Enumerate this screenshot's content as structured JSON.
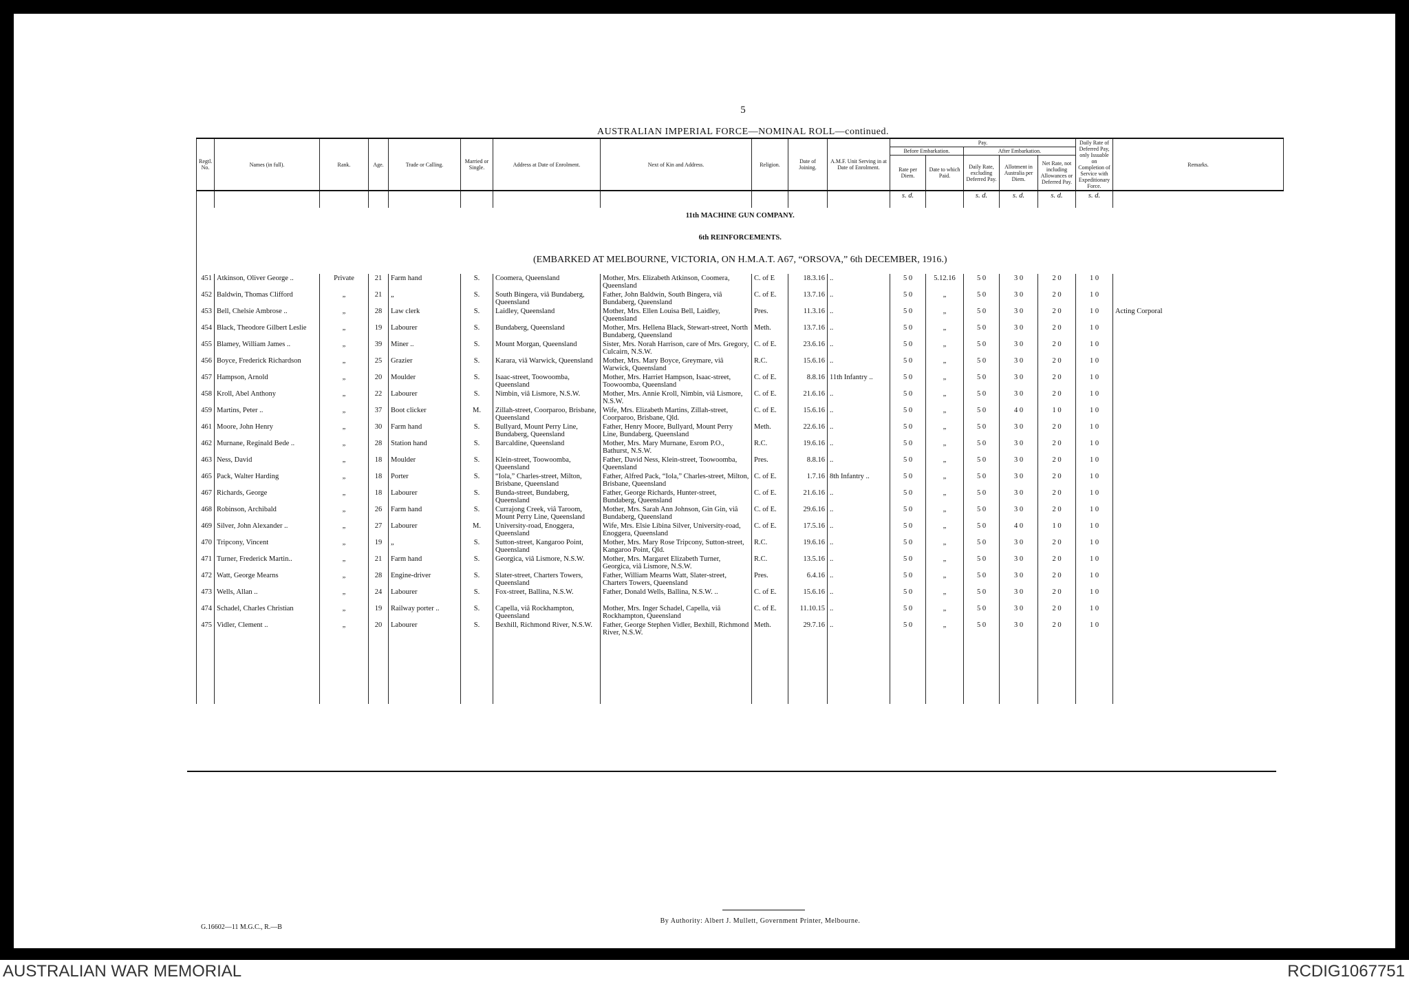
{
  "page_number": "5",
  "title": "AUSTRALIAN IMPERIAL FORCE—NOMINAL ROLL—continued.",
  "columns": {
    "no": "Regtl. No.",
    "name": "Names (in full).",
    "rank": "Rank.",
    "age": "Age.",
    "trade": "Trade or Calling.",
    "married": "Married or Single.",
    "address": "Address at Date of Enrolment.",
    "kin": "Next of Kin and Address.",
    "religion": "Religion.",
    "joined": "Date of Joining.",
    "unit": "A.M.F. Unit Serving in at Date of Enrolment.",
    "rate": "Rate per Diem.",
    "paid": "Date to which Paid.",
    "daily": "Daily Rate, excluding Deferred Pay.",
    "allot": "Allotment in Australia per Diem.",
    "net": "Net Rate, not including Allowances or Deferred Pay.",
    "deferred": "Daily Rate of Deferred Pay, only Issuable on Completion of Service with Expeditionary Force.",
    "remarks": "Remarks."
  },
  "pay": {
    "title": "Pay.",
    "before": "Before Embarkation.",
    "after": "After Embarkation."
  },
  "units": "s. d.",
  "headings": [
    "11th MACHINE GUN COMPANY.",
    "6th REINFORCEMENTS.",
    "(EMBARKED AT MELBOURNE, VICTORIA, ON H.M.A.T. A67, “ORSOVA,” 6th DECEMBER, 1916.)"
  ],
  "rows": [
    {
      "no": 451,
      "name": "Atkinson, Oliver George ..",
      "rank": "Private",
      "age": 21,
      "trade": "Farm hand",
      "married": "S.",
      "address": "Coomera, Queensland",
      "kin": "Mother, Mrs. Elizabeth Atkinson, Coomera, Queensland",
      "religion": "C. of E",
      "joined": "18.3.16",
      "unit": "..",
      "rate": "5 0",
      "paid": "5.12.16",
      "daily": "5 0",
      "allot": "3 0",
      "net": "2 0",
      "deferred": "1 0"
    },
    {
      "no": 452,
      "name": "Baldwin, Thomas Clifford",
      "rank": "„",
      "age": 21,
      "trade": "„",
      "married": "S.",
      "address": "South Bingera, viâ Bundaberg, Queensland",
      "kin": "Father, John Baldwin, South Bingera, viâ Bundaberg, Queensland",
      "religion": "C. of E.",
      "joined": "13.7.16",
      "unit": "..",
      "rate": "5 0",
      "paid": "„",
      "daily": "5 0",
      "allot": "3 0",
      "net": "2 0",
      "deferred": "1 0"
    },
    {
      "no": 453,
      "name": "Bell, Chelsie Ambrose ..",
      "rank": "„",
      "age": 28,
      "trade": "Law clerk",
      "married": "S.",
      "address": "Laidley, Queensland",
      "kin": "Mother, Mrs. Ellen Louisa Bell, Laidley, Queensland",
      "religion": "Pres.",
      "joined": "11.3.16",
      "unit": "..",
      "rate": "5 0",
      "paid": "„",
      "daily": "5 0",
      "allot": "3 0",
      "net": "2 0",
      "deferred": "1 0",
      "remarks": "Acting Corporal"
    },
    {
      "no": 454,
      "name": "Black, Theodore Gilbert Leslie",
      "rank": "„",
      "age": 19,
      "trade": "Labourer",
      "married": "S.",
      "address": "Bundaberg, Queensland",
      "kin": "Mother, Mrs. Hellena Black, Stewart-street, North Bundaberg, Queensland",
      "religion": "Meth.",
      "joined": "13.7.16",
      "unit": "..",
      "rate": "5 0",
      "paid": "„",
      "daily": "5 0",
      "allot": "3 0",
      "net": "2 0",
      "deferred": "1 0"
    },
    {
      "no": 455,
      "name": "Blamey, William James ..",
      "rank": "„",
      "age": 39,
      "trade": "Miner ..",
      "married": "S.",
      "address": "Mount Morgan, Queensland",
      "kin": "Sister, Mrs. Norah Harrison, care of Mrs. Gregory, Culcairn, N.S.W.",
      "religion": "C. of E.",
      "joined": "23.6.16",
      "unit": "..",
      "rate": "5 0",
      "paid": "„",
      "daily": "5 0",
      "allot": "3 0",
      "net": "2 0",
      "deferred": "1 0"
    },
    {
      "no": 456,
      "name": "Boyce, Frederick Richardson",
      "rank": "„",
      "age": 25,
      "trade": "Grazier",
      "married": "S.",
      "address": "Karara, viâ Warwick, Queensland",
      "kin": "Mother, Mrs. Mary Boyce, Greymare, viâ Warwick, Queensland",
      "religion": "R.C.",
      "joined": "15.6.16",
      "unit": "..",
      "rate": "5 0",
      "paid": "„",
      "daily": "5 0",
      "allot": "3 0",
      "net": "2 0",
      "deferred": "1 0"
    },
    {
      "no": 457,
      "name": "Hampson, Arnold",
      "rank": "„",
      "age": 20,
      "trade": "Moulder",
      "married": "S.",
      "address": "Isaac-street, Toowoomba, Queensland",
      "kin": "Mother, Mrs. Harriet Hampson, Isaac-street, Toowoomba, Queensland",
      "religion": "C. of E.",
      "joined": "8.8.16",
      "unit": "11th Infantry ..",
      "rate": "5 0",
      "paid": "„",
      "daily": "5 0",
      "allot": "3 0",
      "net": "2 0",
      "deferred": "1 0"
    },
    {
      "no": 458,
      "name": "Kroll, Abel Anthony",
      "rank": "„",
      "age": 22,
      "trade": "Labourer",
      "married": "S.",
      "address": "Nimbin, viâ Lismore, N.S.W.",
      "kin": "Mother, Mrs. Annie Kroll, Nimbin, viâ Lismore, N.S.W.",
      "religion": "C. of E.",
      "joined": "21.6.16",
      "unit": "..",
      "rate": "5 0",
      "paid": "„",
      "daily": "5 0",
      "allot": "3 0",
      "net": "2 0",
      "deferred": "1 0"
    },
    {
      "no": 459,
      "name": "Martins, Peter ..",
      "rank": "„",
      "age": 37,
      "trade": "Boot clicker",
      "married": "M.",
      "address": "Zillah-street, Coorparoo, Brisbane, Queensland",
      "kin": "Wife, Mrs. Elizabeth Martins, Zillah-street, Coorparoo, Brisbane, Qld.",
      "religion": "C. of E.",
      "joined": "15.6.16",
      "unit": "..",
      "rate": "5 0",
      "paid": "„",
      "daily": "5 0",
      "allot": "4 0",
      "net": "1 0",
      "deferred": "1 0"
    },
    {
      "no": 461,
      "name": "Moore, John Henry",
      "rank": "„",
      "age": 30,
      "trade": "Farm hand",
      "married": "S.",
      "address": "Bullyard, Mount Perry Line, Bundaberg, Queensland",
      "kin": "Father, Henry Moore, Bullyard, Mount Perry Line, Bundaberg, Queensland",
      "religion": "Meth.",
      "joined": "22.6.16",
      "unit": "..",
      "rate": "5 0",
      "paid": "„",
      "daily": "5 0",
      "allot": "3 0",
      "net": "2 0",
      "deferred": "1 0"
    },
    {
      "no": 462,
      "name": "Murnane, Reginald Bede ..",
      "rank": "„",
      "age": 28,
      "trade": "Station hand",
      "married": "S.",
      "address": "Barcaldine, Queensland",
      "kin": "Mother, Mrs. Mary Murnane, Esrom P.O., Bathurst, N.S.W.",
      "religion": "R.C.",
      "joined": "19.6.16",
      "unit": "..",
      "rate": "5 0",
      "paid": "„",
      "daily": "5 0",
      "allot": "3 0",
      "net": "2 0",
      "deferred": "1 0"
    },
    {
      "no": 463,
      "name": "Ness, David",
      "rank": "„",
      "age": 18,
      "trade": "Moulder",
      "married": "S.",
      "address": "Klein-street, Toowoomba, Queensland",
      "kin": "Father, David Ness, Klein-street, Toowoomba, Queensland",
      "religion": "Pres.",
      "joined": "8.8.16",
      "unit": "..",
      "rate": "5 0",
      "paid": "„",
      "daily": "5 0",
      "allot": "3 0",
      "net": "2 0",
      "deferred": "1 0"
    },
    {
      "no": 465,
      "name": "Pack, Walter Harding",
      "rank": "„",
      "age": 18,
      "trade": "Porter",
      "married": "S.",
      "address": "“Iola,” Charles-street, Milton, Brisbane, Queensland",
      "kin": "Father, Alfred Pack, “Iola,” Charles-street, Milton, Brisbane, Queensland",
      "religion": "C. of E.",
      "joined": "1.7.16",
      "unit": "8th Infantry ..",
      "rate": "5 0",
      "paid": "„",
      "daily": "5 0",
      "allot": "3 0",
      "net": "2 0",
      "deferred": "1 0"
    },
    {
      "no": 467,
      "name": "Richards, George",
      "rank": "„",
      "age": 18,
      "trade": "Labourer",
      "married": "S.",
      "address": "Bunda-street, Bundaberg, Queensland",
      "kin": "Father, George Richards, Hunter-street, Bundaberg, Queensland",
      "religion": "C. of E.",
      "joined": "21.6.16",
      "unit": "..",
      "rate": "5 0",
      "paid": "„",
      "daily": "5 0",
      "allot": "3 0",
      "net": "2 0",
      "deferred": "1 0"
    },
    {
      "no": 468,
      "name": "Robinson, Archibald",
      "rank": "„",
      "age": 26,
      "trade": "Farm hand",
      "married": "S.",
      "address": "Currajong Creek, viâ Taroom, Mount Perry Line, Queensland",
      "kin": "Mother, Mrs. Sarah Ann Johnson, Gin Gin, viâ Bundaberg, Queensland",
      "religion": "C. of E.",
      "joined": "29.6.16",
      "unit": "..",
      "rate": "5 0",
      "paid": "„",
      "daily": "5 0",
      "allot": "3 0",
      "net": "2 0",
      "deferred": "1 0"
    },
    {
      "no": 469,
      "name": "Silver, John Alexander ..",
      "rank": "„",
      "age": 27,
      "trade": "Labourer",
      "married": "M.",
      "address": "University-road, Enoggera, Queensland",
      "kin": "Wife, Mrs. Elsie Libina Silver, University-road, Enoggera, Queensland",
      "religion": "C. of E.",
      "joined": "17.5.16",
      "unit": "..",
      "rate": "5 0",
      "paid": "„",
      "daily": "5 0",
      "allot": "4 0",
      "net": "1 0",
      "deferred": "1 0"
    },
    {
      "no": 470,
      "name": "Tripcony, Vincent",
      "rank": "„",
      "age": 19,
      "trade": "„",
      "married": "S.",
      "address": "Sutton-street, Kangaroo Point, Queensland",
      "kin": "Mother, Mrs. Mary Rose Tripcony, Sutton-street, Kangaroo Point, Qld.",
      "religion": "R.C.",
      "joined": "19.6.16",
      "unit": "..",
      "rate": "5 0",
      "paid": "„",
      "daily": "5 0",
      "allot": "3 0",
      "net": "2 0",
      "deferred": "1 0"
    },
    {
      "no": 471,
      "name": "Turner, Frederick Martin..",
      "rank": "„",
      "age": 21,
      "trade": "Farm hand",
      "married": "S.",
      "address": "Georgica, viâ Lismore, N.S.W.",
      "kin": "Mother, Mrs. Margaret Elizabeth Turner, Georgica, viâ Lismore, N.S.W.",
      "religion": "R.C.",
      "joined": "13.5.16",
      "unit": "..",
      "rate": "5 0",
      "paid": "„",
      "daily": "5 0",
      "allot": "3 0",
      "net": "2 0",
      "deferred": "1 0"
    },
    {
      "no": 472,
      "name": "Watt, George Mearns",
      "rank": "„",
      "age": 28,
      "trade": "Engine-driver",
      "married": "S.",
      "address": "Slater-street, Charters Towers, Queensland",
      "kin": "Father, William Mearns Watt, Slater-street, Charters Towers, Queensland",
      "religion": "Pres.",
      "joined": "6.4.16",
      "unit": "..",
      "rate": "5 0",
      "paid": "„",
      "daily": "5 0",
      "allot": "3 0",
      "net": "2 0",
      "deferred": "1 0"
    },
    {
      "no": 473,
      "name": "Wells, Allan ..",
      "rank": "„",
      "age": 24,
      "trade": "Labourer",
      "married": "S.",
      "address": "Fox-street, Ballina, N.S.W.",
      "kin": "Father, Donald Wells, Ballina, N.S.W. ..",
      "religion": "C. of E.",
      "joined": "15.6.16",
      "unit": "..",
      "rate": "5 0",
      "paid": "„",
      "daily": "5 0",
      "allot": "3 0",
      "net": "2 0",
      "deferred": "1 0"
    },
    {
      "no": 474,
      "name": "Schadel, Charles Christian",
      "rank": "„",
      "age": 19,
      "trade": "Railway porter ..",
      "married": "S.",
      "address": "Capella, viâ Rockhampton, Queensland",
      "kin": "Mother, Mrs. Inger Schadel, Capella, viâ Rockhampton, Queensland",
      "religion": "C. of E.",
      "joined": "11.10.15",
      "unit": "..",
      "rate": "5 0",
      "paid": "„",
      "daily": "5 0",
      "allot": "3 0",
      "net": "2 0",
      "deferred": "1 0"
    },
    {
      "no": 475,
      "name": "Vidler, Clement ..",
      "rank": "„",
      "age": 20,
      "trade": "Labourer",
      "married": "S.",
      "address": "Bexhill, Richmond River, N.S.W.",
      "kin": "Father, George Stephen Vidler, Bexhill, Richmond River, N.S.W.",
      "religion": "Meth.",
      "joined": "29.7.16",
      "unit": "..",
      "rate": "5 0",
      "paid": "„",
      "daily": "5 0",
      "allot": "3 0",
      "net": "2 0",
      "deferred": "1 0"
    }
  ],
  "footer": {
    "authority": "By Authority: Albert J. Mullett, Government Printer, Melbourne.",
    "code": "G.16602—11 M.G.C., R.—B"
  },
  "watermark": {
    "left": "AUSTRALIAN WAR MEMORIAL",
    "right": "RCDIG1067751"
  }
}
